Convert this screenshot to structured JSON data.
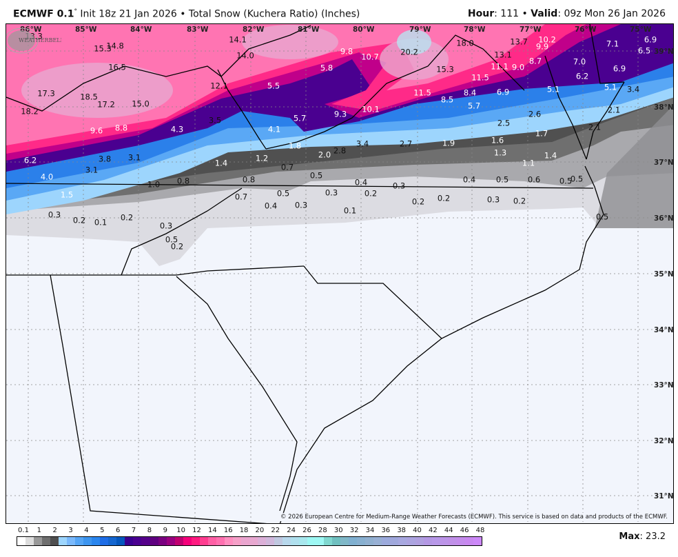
{
  "header": {
    "model": "ECMWF 0.1",
    "degree": "°",
    "init": " Init 18z 21 Jan 2026 • Total Snow (Kuchera Ratio) (Inches)",
    "hour_label": "Hour",
    "hour_value": ": 111 • ",
    "valid_label": "Valid",
    "valid_value": ": 09z Mon 26 Jan 2026"
  },
  "map": {
    "longitude_labels": [
      "86°W",
      "85°W",
      "84°W",
      "83°W",
      "82°W",
      "81°W",
      "80°W",
      "79°W",
      "78°W",
      "77°W",
      "76°W",
      "75°W"
    ],
    "latitude_labels": [
      "39°N",
      "38°N",
      "37°N",
      "36°N",
      "35°N",
      "34°N",
      "33°N",
      "32°N",
      "31°N"
    ],
    "snow_values": [
      "13.3",
      "15.3",
      "14.8",
      "16.5",
      "17.3",
      "18.5",
      "17.2",
      "15.0",
      "18.2",
      "9.6",
      "8.8",
      "4.3",
      "3.5",
      "12.1",
      "14.1",
      "14.0",
      "5.5",
      "5.8",
      "9.8",
      "10.7",
      "20.2",
      "15.3",
      "18.0",
      "13.7",
      "10.2",
      "9.9",
      "13.1",
      "11.5",
      "11.1",
      "9.0",
      "8.7",
      "11.5",
      "8.5",
      "8.4",
      "6.9",
      "5.7",
      "10.1",
      "9.3",
      "5.7",
      "4.1",
      "7.1",
      "6.9",
      "6.5",
      "7.0",
      "6.9",
      "6.2",
      "5.1",
      "5.1",
      "3.4",
      "2.6",
      "2.5",
      "2.1",
      "2.1",
      "1.7",
      "1.6",
      "1.3",
      "1.4",
      "1.1",
      "1.9",
      "2.7",
      "3.4",
      "2.8",
      "2.0",
      "1.8",
      "1.2",
      "1.4",
      "6.2",
      "4.0",
      "3.8",
      "3.1",
      "3.1",
      "1.5",
      "1.0",
      "0.8",
      "0.8",
      "0.7",
      "0.5",
      "0.4",
      "0.3",
      "0.4",
      "0.5",
      "0.6",
      "0.5",
      "0.5",
      "0.7",
      "0.5",
      "0.3",
      "0.2",
      "0.4",
      "0.3",
      "0.1",
      "0.2",
      "0.2",
      "0.3",
      "0.2",
      "0.3",
      "0.2",
      "0.1",
      "0.2",
      "0.3",
      "0.5",
      "0.2",
      "0.5"
    ],
    "copyright": "© 2026 European Centre for Medium-Range Weather Forecasts (ECMWF). This service is based on data and products of the ECMWF.",
    "logo_text": "WeatherBELL Analytics LLC",
    "background_color": "#f2f5fc",
    "border_color": "#000000",
    "county_line_color": "#b4b4c0"
  },
  "legend": {
    "labels": [
      "0.1",
      "1",
      "2",
      "3",
      "4",
      "5",
      "6",
      "7",
      "8",
      "9",
      "10",
      "12",
      "14",
      "16",
      "18",
      "20",
      "22",
      "24",
      "26",
      "28",
      "30",
      "32",
      "34",
      "36",
      "38",
      "40",
      "42",
      "44",
      "46",
      "48"
    ],
    "colors": [
      "#ffffff",
      "#dddddd",
      "#999999",
      "#6f6f6f",
      "#4f4f4f",
      "#9dd5fd",
      "#7ab9fb",
      "#55a5f5",
      "#3d95ef",
      "#2b86ee",
      "#1e6de6",
      "#1566d0",
      "#0557bd",
      "#3a0090",
      "#4a0090",
      "#55008a",
      "#5f0080",
      "#7a0080",
      "#9a0080",
      "#c00070",
      "#f5007a",
      "#ff1a80",
      "#ff3d90",
      "#ff5fa5",
      "#ff70b0",
      "#ff8ec0",
      "#f5a0c8",
      "#eaa5cf",
      "#e8a8d0",
      "#dcb0d8",
      "#d0b8dc",
      "#c0c8e0",
      "#b8d8ec",
      "#b0e0ee",
      "#a8e8ee",
      "#9ef8f4",
      "#9ef8f4",
      "#80d8d0",
      "#70c0c0",
      "#80b8c8",
      "#80b0d0",
      "#88b0d0",
      "#90b0d0",
      "#98b0d4",
      "#9caadc",
      "#a0a8dc",
      "#a8a8e0",
      "#aca4e0",
      "#b0a0e0",
      "#b498e4",
      "#b898e8",
      "#bc94e8",
      "#c090e8",
      "#c48cec",
      "#c888f0",
      "#cc88f8"
    ],
    "max_label": "Max",
    "max_value": ": 23.2"
  }
}
